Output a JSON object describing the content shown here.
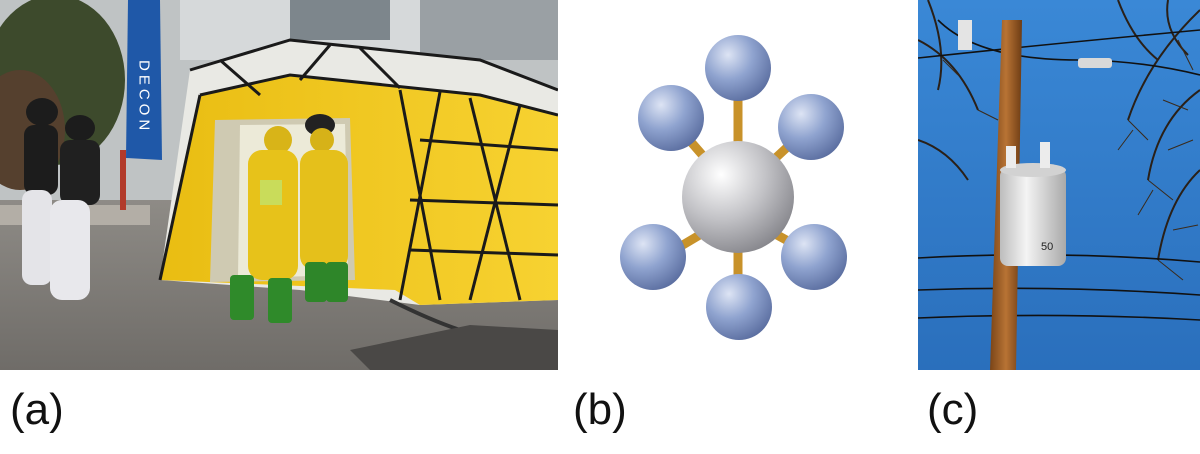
{
  "panels": [
    {
      "label": "(a)",
      "banner_text": "DECON"
    },
    {
      "label": "(b)"
    },
    {
      "label": "(c)",
      "transformer_mark": "50"
    }
  ],
  "colors": {
    "tent_yellow": "#f2c81a",
    "suit_yellow": "#e7c21a",
    "boot_green": "#2f8a2a",
    "sky_blue": "#2f7fcf",
    "atom_blue": "#8fa3cf",
    "atom_gray": "#b8b8bc",
    "bond_gold": "#c8922a",
    "pole_brown": "#a0602a"
  }
}
